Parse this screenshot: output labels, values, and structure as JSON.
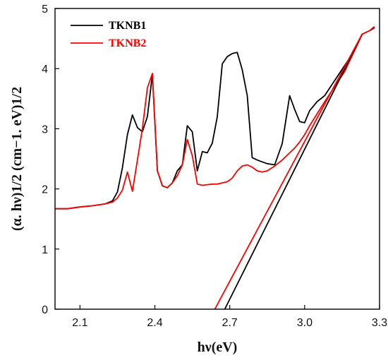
{
  "chart_data": {
    "type": "line",
    "xlabel": "hν(eV)",
    "ylabel": "(α. hν)1/2 (cm−1. eV)1/2",
    "xlim": [
      2.0,
      3.3
    ],
    "ylim": [
      0,
      5
    ],
    "xticks": [
      2.1,
      2.4,
      2.7,
      3.0,
      3.3
    ],
    "xtick_labels": [
      "2.1",
      "2.4",
      "2.7",
      "3.0",
      "3.3"
    ],
    "yticks": [
      0,
      1,
      2,
      3,
      4,
      5
    ],
    "ytick_labels": [
      "0",
      "1",
      "2",
      "3",
      "4",
      "5"
    ],
    "grid": false,
    "legend_position": "top-left",
    "series": [
      {
        "name": "TKNB1",
        "color": "#000000",
        "x": [
          2.0,
          2.05,
          2.1,
          2.15,
          2.2,
          2.23,
          2.25,
          2.27,
          2.29,
          2.31,
          2.33,
          2.35,
          2.37,
          2.39,
          2.41,
          2.43,
          2.45,
          2.47,
          2.49,
          2.51,
          2.53,
          2.55,
          2.57,
          2.59,
          2.61,
          2.63,
          2.65,
          2.67,
          2.69,
          2.71,
          2.73,
          2.75,
          2.77,
          2.79,
          2.81,
          2.83,
          2.85,
          2.88,
          2.91,
          2.94,
          2.96,
          2.98,
          3.0,
          3.02,
          3.05,
          3.08,
          3.12,
          3.16,
          3.2,
          3.23,
          3.26,
          3.28
        ],
        "y": [
          1.67,
          1.67,
          1.7,
          1.72,
          1.75,
          1.8,
          1.95,
          2.35,
          2.9,
          3.23,
          3.02,
          2.95,
          3.2,
          3.9,
          2.3,
          2.05,
          2.02,
          2.1,
          2.3,
          2.4,
          3.05,
          2.95,
          2.3,
          2.62,
          2.6,
          2.76,
          3.2,
          4.08,
          4.2,
          4.25,
          4.27,
          3.98,
          3.55,
          2.52,
          2.48,
          2.45,
          2.42,
          2.4,
          2.75,
          3.55,
          3.32,
          3.12,
          3.1,
          3.3,
          3.45,
          3.55,
          3.8,
          4.05,
          4.3,
          4.57,
          4.63,
          4.68
        ]
      },
      {
        "name": "TKNB2",
        "color": "#ff0000",
        "x": [
          2.0,
          2.05,
          2.1,
          2.15,
          2.2,
          2.23,
          2.25,
          2.27,
          2.29,
          2.31,
          2.33,
          2.35,
          2.37,
          2.39,
          2.41,
          2.43,
          2.45,
          2.47,
          2.49,
          2.51,
          2.53,
          2.55,
          2.57,
          2.59,
          2.61,
          2.63,
          2.65,
          2.67,
          2.69,
          2.71,
          2.73,
          2.75,
          2.77,
          2.79,
          2.81,
          2.83,
          2.85,
          2.88,
          2.91,
          2.94,
          2.96,
          2.98,
          3.0,
          3.02,
          3.05,
          3.08,
          3.12,
          3.16,
          3.2,
          3.23,
          3.26,
          3.28
        ],
        "y": [
          1.67,
          1.67,
          1.7,
          1.72,
          1.75,
          1.78,
          1.85,
          1.98,
          2.28,
          1.96,
          2.48,
          3.0,
          3.68,
          3.92,
          2.3,
          2.05,
          2.02,
          2.1,
          2.22,
          2.4,
          2.82,
          2.55,
          2.08,
          2.06,
          2.07,
          2.08,
          2.08,
          2.1,
          2.12,
          2.18,
          2.3,
          2.38,
          2.4,
          2.36,
          2.3,
          2.28,
          2.3,
          2.38,
          2.48,
          2.6,
          2.68,
          2.78,
          2.9,
          3.05,
          3.25,
          3.45,
          3.7,
          3.95,
          4.3,
          4.57,
          4.63,
          4.7
        ]
      },
      {
        "name": "",
        "color": "#000000",
        "x": [
          2.68,
          3.23
        ],
        "y": [
          0,
          4.57
        ]
      },
      {
        "name": "",
        "color": "#ff0000",
        "x": [
          2.64,
          3.23
        ],
        "y": [
          0,
          4.57
        ]
      }
    ]
  }
}
